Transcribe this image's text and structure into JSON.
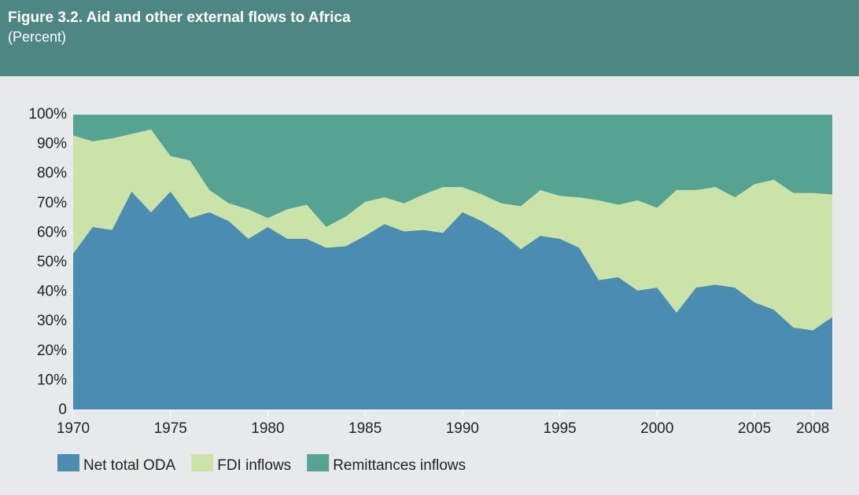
{
  "chart_data": {
    "type": "stacked_area",
    "title": "Figure 3.2. Aid and other external flows to Africa",
    "subtitle": "(Percent)",
    "x": [
      1970,
      1971,
      1972,
      1973,
      1974,
      1975,
      1976,
      1977,
      1978,
      1979,
      1980,
      1981,
      1982,
      1983,
      1984,
      1985,
      1986,
      1987,
      1988,
      1989,
      1990,
      1991,
      1992,
      1993,
      1994,
      1995,
      1996,
      1997,
      1998,
      1999,
      2000,
      2001,
      2002,
      2003,
      2004,
      2005,
      2006,
      2007,
      2008,
      2009
    ],
    "series": [
      {
        "name": "Net total ODA",
        "color": "#4a8cb2",
        "values": [
          53,
          62,
          61,
          74,
          67,
          74,
          65,
          67,
          64,
          58,
          62,
          58,
          58,
          55,
          55.5,
          59,
          63,
          60.5,
          61,
          60,
          67,
          64,
          60,
          54.5,
          59,
          58,
          55,
          44,
          45,
          40.5,
          41.5,
          33,
          41.5,
          42.5,
          41.5,
          36.5,
          34,
          28,
          27,
          31.5
        ]
      },
      {
        "name": "FDI inflows",
        "color": "#cce3a8",
        "values": [
          40,
          29,
          31,
          19.5,
          28,
          12,
          19.5,
          7.5,
          6,
          10,
          3,
          10,
          11.5,
          7,
          10,
          11.5,
          9,
          9.5,
          12,
          15.5,
          8.5,
          9,
          10,
          14.5,
          15.5,
          14.5,
          17,
          27,
          24.5,
          30.5,
          27,
          41.5,
          33,
          33,
          30.5,
          40,
          44,
          45.5,
          46.5,
          41.5
        ]
      },
      {
        "name": "Remittances inflows",
        "color": "#55a493",
        "values": [
          7,
          9,
          8,
          6.5,
          5,
          14,
          15.5,
          25.5,
          30,
          32,
          35,
          32,
          30.5,
          38,
          34.5,
          29.5,
          28,
          30,
          27,
          24.5,
          24.5,
          27,
          30,
          31,
          25.5,
          27.5,
          28,
          29,
          30.5,
          29,
          31.5,
          25.5,
          25.5,
          24.5,
          28,
          23.5,
          22,
          26.5,
          26.5,
          27
        ]
      }
    ],
    "xlim": [
      1970,
      2009
    ],
    "xticks": [
      1970,
      1975,
      1980,
      1985,
      1990,
      1995,
      2000,
      2005,
      2008
    ],
    "ylim": [
      0,
      100
    ],
    "yticks": [
      0,
      {
        "value": 10,
        "label": "10%"
      },
      {
        "value": 20,
        "label": "20%"
      },
      {
        "value": 30,
        "label": "30%"
      },
      {
        "value": 40,
        "label": "40%"
      },
      {
        "value": 50,
        "label": "50%"
      },
      {
        "value": 60,
        "label": "60%"
      },
      {
        "value": 70,
        "label": "70%"
      },
      {
        "value": 80,
        "label": "80%"
      },
      {
        "value": 90,
        "label": "90%"
      },
      {
        "value": 100,
        "label": "100%"
      }
    ],
    "grid": false,
    "legend": "bottom"
  }
}
